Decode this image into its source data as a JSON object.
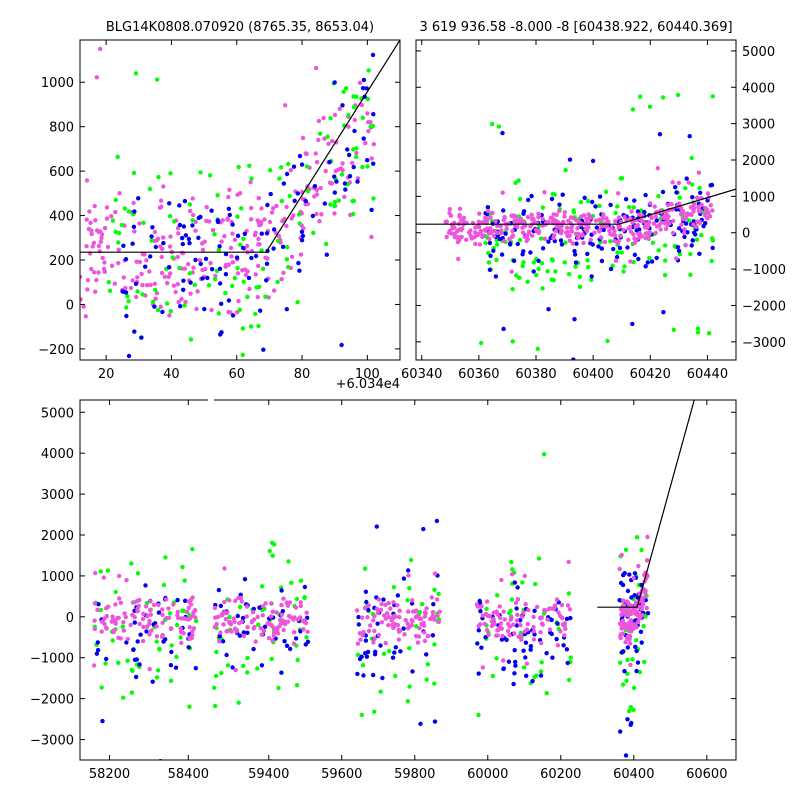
{
  "colors": {
    "green": "#00ff00",
    "blue": "#0000ee",
    "magenta": "#ee55dd",
    "fit": "#000000"
  },
  "chart_data": [
    {
      "type": "scatter",
      "name": "top-left",
      "title": "BLG14K0808.070920 (8765.35, 8653.04)",
      "offset_label": "+6.034e4",
      "xlim": [
        12,
        110
      ],
      "ylim": [
        -250,
        1190
      ],
      "x_ticks": [
        20,
        40,
        60,
        80,
        100
      ],
      "y_ticks": [
        -200,
        0,
        200,
        400,
        600,
        800,
        1000
      ],
      "fit_line": [
        [
          12,
          235
        ],
        [
          69,
          235
        ],
        [
          110,
          1190
        ]
      ],
      "seed": 11,
      "clusters": [
        {
          "color": "magenta",
          "n": 300,
          "x": [
            12,
            102
          ],
          "y_mode": "rising",
          "base": 240,
          "spread": 160
        },
        {
          "color": "green",
          "n": 130,
          "x": [
            20,
            102
          ],
          "y_mode": "rising",
          "base": 230,
          "spread": 230
        },
        {
          "color": "blue",
          "n": 130,
          "x": [
            25,
            102
          ],
          "y_mode": "rising",
          "base": 200,
          "spread": 230
        }
      ]
    },
    {
      "type": "scatter",
      "name": "top-right",
      "title": "3 619 936.58 -8.000 -8 [60438.922, 60440.369]",
      "xlim": [
        60338,
        60450
      ],
      "ylim": [
        -3500,
        5300
      ],
      "x_ticks": [
        60340,
        60360,
        60380,
        60400,
        60420,
        60440
      ],
      "y_ticks": [
        -3000,
        -2000,
        -1000,
        0,
        1000,
        2000,
        3000,
        4000,
        5000
      ],
      "fit_line": [
        [
          60338,
          235
        ],
        [
          60409,
          235
        ],
        [
          60450,
          1200
        ]
      ],
      "seed": 23,
      "clusters": [
        {
          "color": "green",
          "n": 160,
          "x": [
            60360,
            60442
          ],
          "y_mode": "flat",
          "base": 0,
          "spread": 900
        },
        {
          "color": "blue",
          "n": 200,
          "x": [
            60362,
            60442
          ],
          "y_mode": "flat",
          "base": 0,
          "spread": 600
        },
        {
          "color": "magenta",
          "n": 380,
          "x": [
            60348,
            60442
          ],
          "y_mode": "flat",
          "base": 150,
          "spread": 260
        }
      ]
    },
    {
      "type": "scatter",
      "name": "bottom",
      "xlim": [
        58125,
        60680
      ],
      "ylim": [
        -3500,
        5300
      ],
      "x_ticks": [
        58200,
        58400,
        59400,
        59600,
        59800,
        60000,
        60200,
        60400,
        60600
      ],
      "y_ticks": [
        -3000,
        -2000,
        -1000,
        0,
        1000,
        2000,
        3000,
        4000,
        5000
      ],
      "axis_break_x": [
        58450,
        59250
      ],
      "fit_line": [
        [
          60300,
          235
        ],
        [
          60409,
          235
        ],
        [
          60680,
          9000
        ]
      ],
      "seed": 37,
      "seasons": [
        [
          58160,
          58420
        ],
        [
          59250,
          59510
        ],
        [
          59640,
          59870
        ],
        [
          59970,
          60230
        ],
        [
          60360,
          60440
        ]
      ],
      "clusters": [
        {
          "color": "green",
          "n": 220,
          "y_mode": "flat",
          "base": -300,
          "spread": 1100
        },
        {
          "color": "blue",
          "n": 260,
          "y_mode": "flat",
          "base": -250,
          "spread": 700
        },
        {
          "color": "magenta",
          "n": 520,
          "y_mode": "flat",
          "base": -100,
          "spread": 300
        }
      ]
    }
  ]
}
